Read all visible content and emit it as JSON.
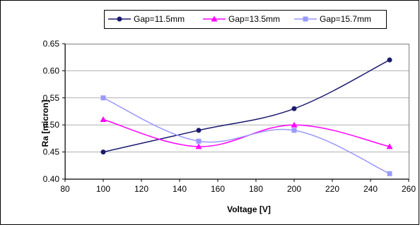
{
  "chart_data": {
    "type": "line",
    "xlabel": "Voltage [V]",
    "ylabel": "Ra [micron]",
    "xlim": [
      80,
      260
    ],
    "ylim": [
      0.4,
      0.65
    ],
    "xticks": [
      "80",
      "100",
      "120",
      "140",
      "160",
      "180",
      "200",
      "220",
      "240",
      "260"
    ],
    "yticks": [
      "0.40",
      "0.45",
      "0.50",
      "0.55",
      "0.60",
      "0.65"
    ],
    "grid": "horizontal",
    "legend_position": "top",
    "x": [
      100,
      150,
      200,
      250
    ],
    "series": [
      {
        "name": "Gap=11.5mm",
        "values": [
          0.45,
          0.49,
          0.53,
          0.62
        ],
        "color": "#1a1a6e",
        "marker": "circle"
      },
      {
        "name": "Gap=13.5mm",
        "values": [
          0.51,
          0.46,
          0.5,
          0.46
        ],
        "color": "#ff00ff",
        "marker": "triangle"
      },
      {
        "name": "Gap=15.7mm",
        "values": [
          0.55,
          0.47,
          0.49,
          0.41
        ],
        "color": "#9999ff",
        "marker": "square"
      }
    ]
  }
}
